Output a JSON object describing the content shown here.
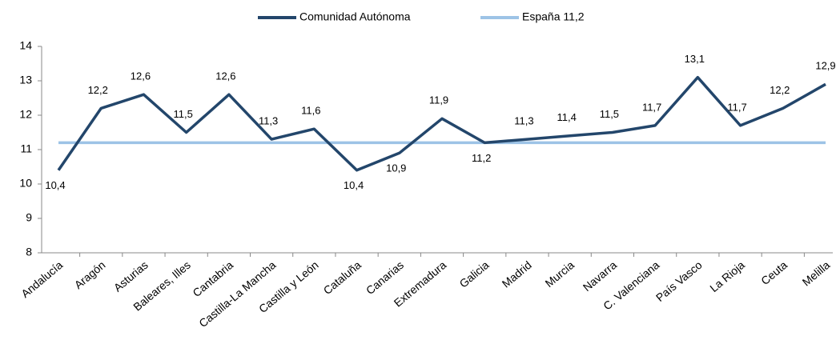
{
  "chart_data": {
    "type": "line",
    "categories": [
      "Andalucía",
      "Aragón",
      "Asturias",
      "Baleares, Illes",
      "Cantabria",
      "Castilla-La Mancha",
      "Castilla y León",
      "Cataluña",
      "Canarias",
      "Extremadura",
      "Galicia",
      "Madrid",
      "Murcia",
      "Navarra",
      "C. Valenciana",
      "País Vasco",
      "La Rioja",
      "Ceuta",
      "Melilla"
    ],
    "series": [
      {
        "name": "Comunidad Autónoma",
        "color": "#23466b",
        "values": [
          10.4,
          12.2,
          12.6,
          11.5,
          12.6,
          11.3,
          11.6,
          10.4,
          10.9,
          11.9,
          11.2,
          11.3,
          11.4,
          11.5,
          11.7,
          13.1,
          11.7,
          12.2,
          12.9
        ],
        "value_labels": [
          "10,4",
          "12,2",
          "12,6",
          "11,5",
          "12,6",
          "11,3",
          "11,6",
          "10,4",
          "10,9",
          "11,9",
          "11,2",
          "11,3",
          "11,4",
          "11,5",
          "11,7",
          "13,1",
          "11,7",
          "12,2",
          "12,9"
        ]
      },
      {
        "name": "España 11,2",
        "color": "#9dc3e6",
        "values": [
          11.2,
          11.2,
          11.2,
          11.2,
          11.2,
          11.2,
          11.2,
          11.2,
          11.2,
          11.2,
          11.2,
          11.2,
          11.2,
          11.2,
          11.2,
          11.2,
          11.2,
          11.2,
          11.2
        ]
      }
    ],
    "ylim": [
      8,
      14
    ],
    "yticks": [
      8,
      9,
      10,
      11,
      12,
      13,
      14
    ],
    "grid": false,
    "legend": "top"
  }
}
